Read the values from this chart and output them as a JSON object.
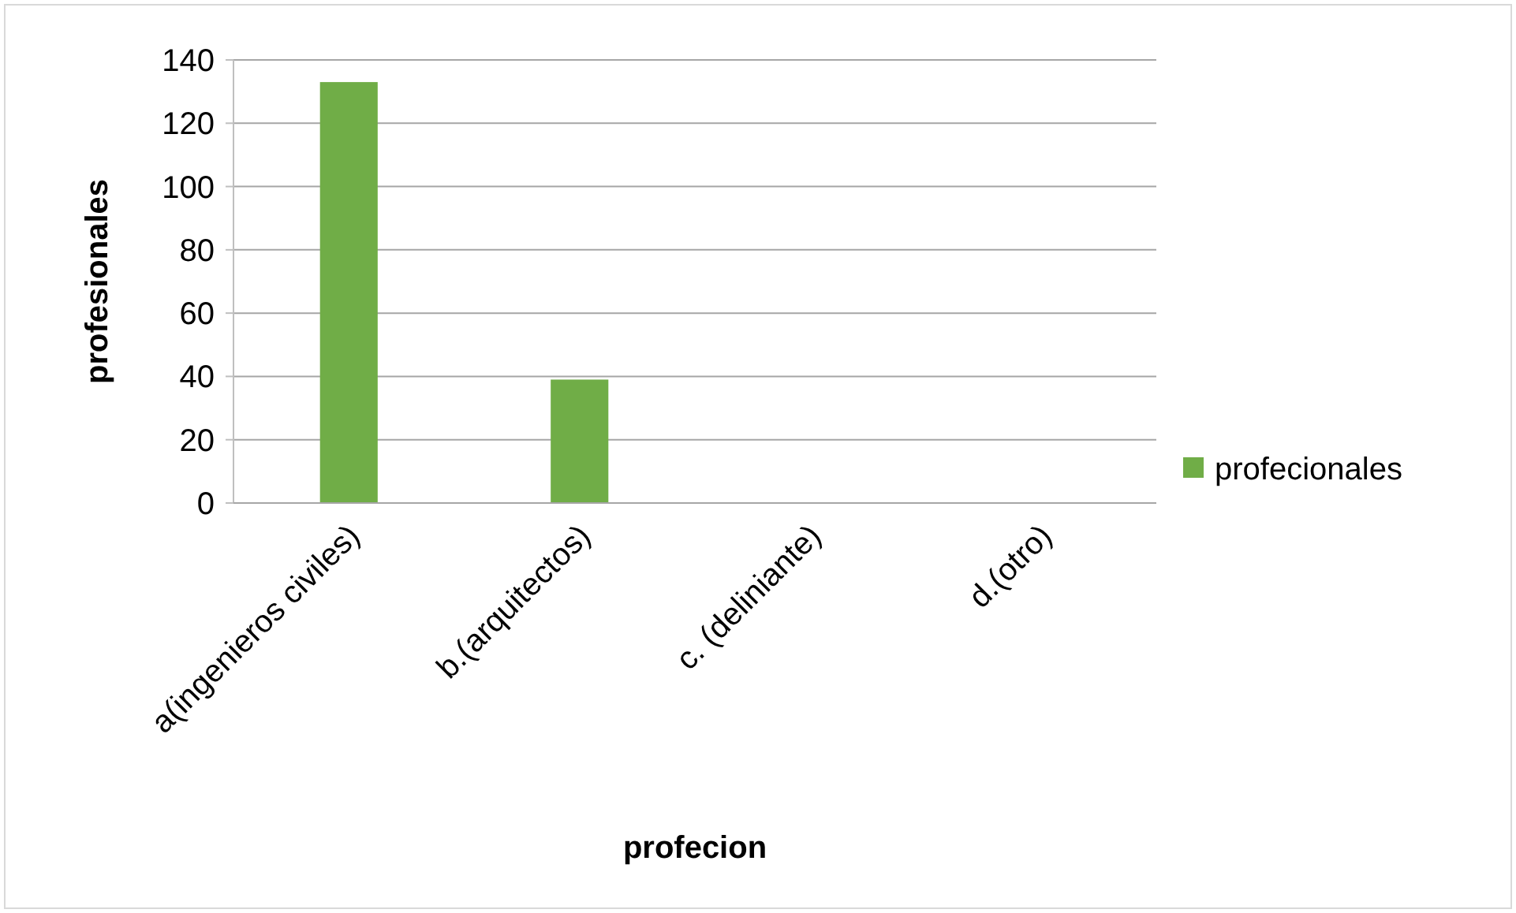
{
  "chart_data": {
    "type": "bar",
    "xlabel": "profecion",
    "ylabel": "profesionales",
    "categories": [
      "a(ingenieros civiles)",
      "b.(arquitectos)",
      "c. (deliniante)",
      "d.(otro)"
    ],
    "series": [
      {
        "name": "profecionales",
        "color": "#70ad47",
        "values": [
          133,
          39,
          0,
          0
        ]
      }
    ],
    "ylim": [
      0,
      140
    ],
    "yticks": [
      0,
      20,
      40,
      60,
      80,
      100,
      120,
      140
    ],
    "grid": "y",
    "legend": "right"
  }
}
